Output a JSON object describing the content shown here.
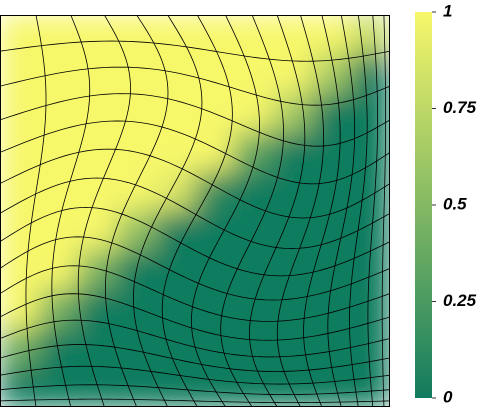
{
  "chart_data": {
    "type": "heatmap",
    "z": [
      [
        1,
        1,
        1,
        1,
        1,
        1,
        1,
        1,
        1,
        0.79
      ],
      [
        1,
        1,
        1,
        1,
        1,
        1,
        1,
        1,
        0.67,
        0
      ],
      [
        1,
        1,
        1,
        1,
        1,
        1,
        1,
        0.65,
        0,
        0
      ],
      [
        1,
        1,
        1,
        1,
        1,
        1,
        0.33,
        0,
        0,
        0
      ],
      [
        1,
        1,
        1,
        1,
        0.89,
        0.11,
        0,
        0,
        0,
        0
      ],
      [
        1,
        1,
        1,
        0.57,
        0,
        0,
        0,
        0,
        0,
        0
      ],
      [
        1,
        1,
        0.45,
        0,
        0,
        0,
        0,
        0,
        0,
        0
      ],
      [
        1,
        0.43,
        0,
        0,
        0,
        0,
        0,
        0,
        0,
        0
      ],
      [
        0.41,
        0,
        0,
        0,
        0,
        0,
        0,
        0,
        0,
        0
      ],
      [
        0,
        0,
        0,
        0,
        0,
        0,
        0,
        0,
        0,
        0
      ]
    ],
    "colorscale": [
      "#117b5e",
      "#f7f76a"
    ],
    "clim": [
      0,
      1
    ],
    "cticks": [
      0,
      0.25,
      0.5,
      0.75,
      1
    ],
    "mesh": true
  }
}
